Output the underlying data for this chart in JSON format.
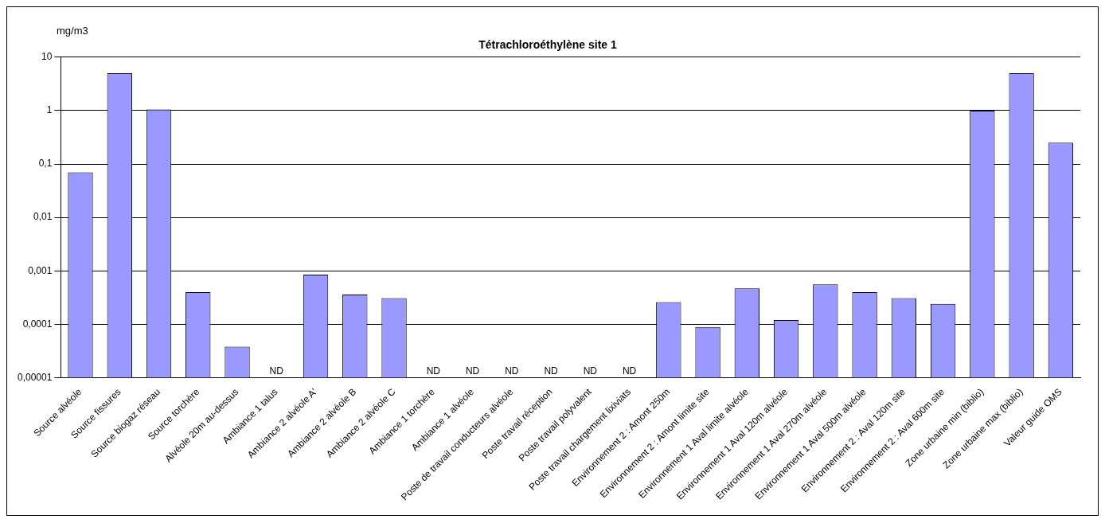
{
  "chart_data": {
    "type": "bar",
    "title": "Tétrachloroéthylène site 1",
    "ylabel": "mg/m3",
    "categories": [
      "Source alvéole",
      "Source fissures",
      "Source biogaz réseau",
      "Source torchère",
      "Alvéole 20m au-dessus",
      "Ambiance 1 talus",
      "Ambiance 2 alvéole A'",
      "Ambiance 2 alvéole B",
      "Ambiance 2 alvéole C",
      "Ambiance 1 torchère",
      "Ambiance 1 alvéole",
      "Poste de travail conducteurs alvéole",
      "Poste travail réception",
      "Poste travail polyvalent",
      "Poste travail chargement lixiviats",
      "Environnement 2 : Amont 250m",
      "Environnement 2 : Amont limite site",
      "Environnement 1 Aval limite alvéole",
      "Environnement 1 Aval 120m alvéole",
      "Environnement 1 Aval 270m alvéole",
      "Environnement 1 Aval 500m alvéole",
      "Environnement 2 : Aval 120m site",
      "Environnement 2 : Aval 600m site",
      "Zone urbaine min (biblio)",
      "Zone urbaine max (biblio)",
      "Valeur guide OMS"
    ],
    "values": [
      0.07,
      5,
      1.05,
      0.0004,
      3.8e-05,
      null,
      0.00085,
      0.00036,
      0.00031,
      null,
      null,
      null,
      null,
      null,
      null,
      0.00026,
      8.9e-05,
      0.00047,
      0.00012,
      0.00056,
      0.0004,
      0.00031,
      0.00024,
      1,
      5,
      0.25
    ],
    "value_labels": [
      null,
      null,
      null,
      null,
      null,
      "ND",
      null,
      null,
      null,
      "ND",
      "ND",
      "ND",
      "ND",
      "ND",
      "ND",
      null,
      null,
      null,
      null,
      null,
      null,
      null,
      null,
      null,
      null,
      null
    ],
    "color": "#9999ff",
    "log": true,
    "grid": "y",
    "legend": false,
    "ylim": [
      1e-05,
      10
    ],
    "yticks": [
      {
        "value": 1e-05,
        "label": "0,00001"
      },
      {
        "value": 0.0001,
        "label": "0,0001"
      },
      {
        "value": 0.001,
        "label": "0,001"
      },
      {
        "value": 0.01,
        "label": "0,01"
      },
      {
        "value": 0.1,
        "label": "0,1"
      },
      1,
      10
    ]
  }
}
